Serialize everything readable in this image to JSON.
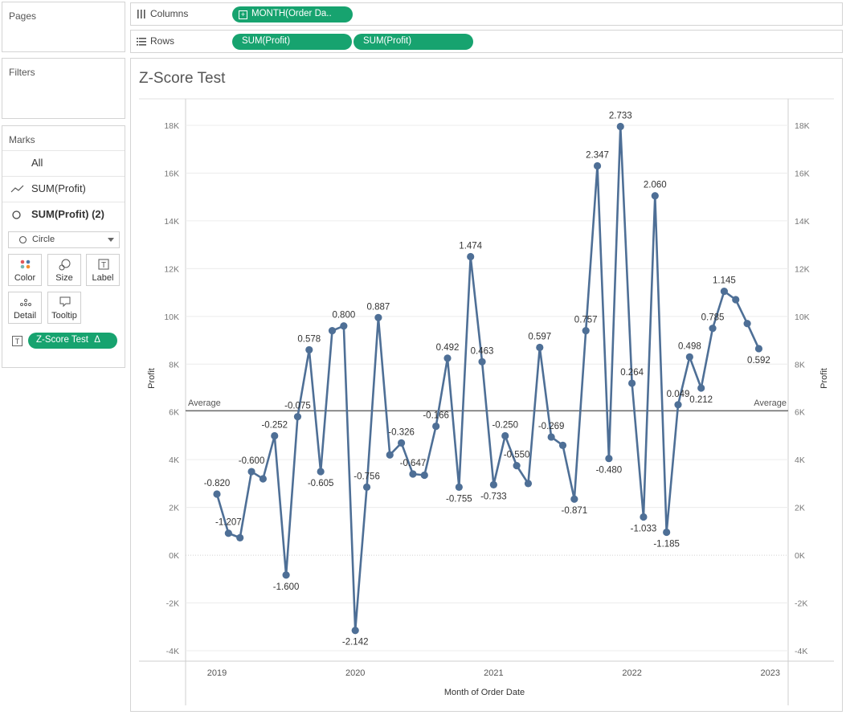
{
  "panels": {
    "pages_label": "Pages",
    "filters_label": "Filters",
    "marks_label": "Marks"
  },
  "marks": {
    "all_label": "All",
    "layer1_label": "SUM(Profit)",
    "layer2_label": "SUM(Profit) (2)",
    "mark_type": "Circle",
    "buttons": [
      {
        "label": "Color",
        "icon": "color-dots-icon"
      },
      {
        "label": "Size",
        "icon": "size-icon"
      },
      {
        "label": "Label",
        "icon": "label-icon"
      },
      {
        "label": "Detail",
        "icon": "detail-icon"
      },
      {
        "label": "Tooltip",
        "icon": "tooltip-icon"
      }
    ],
    "label_field": "Z-Score Test",
    "label_field_badge": "Δ"
  },
  "shelves": {
    "columns_label": "Columns",
    "columns_pill": "MONTH(Order Da..",
    "rows_label": "Rows",
    "rows_pills": [
      "SUM(Profit)",
      "SUM(Profit)"
    ]
  },
  "colors": {
    "pill": "#17a36f",
    "line": "#4e6f96",
    "grid": "#ececec",
    "avg_line": "#555555"
  },
  "chart_data": {
    "type": "line",
    "title": "Z-Score Test",
    "xlabel": "Month of Order Date",
    "ylabel": "Profit",
    "ylim": [
      -4000,
      19000
    ],
    "y_ticks": [
      -4000,
      -2000,
      0,
      2000,
      4000,
      6000,
      8000,
      10000,
      12000,
      14000,
      16000,
      18000
    ],
    "y_tick_labels": [
      "-4K",
      "-2K",
      "0K",
      "2K",
      "4K",
      "6K",
      "8K",
      "10K",
      "12K",
      "14K",
      "16K",
      "18K"
    ],
    "x_tick_labels": [
      "2019",
      "2020",
      "2021",
      "2022",
      "2023"
    ],
    "average_label": "Average",
    "average_value": 6050,
    "grid": true,
    "series": [
      {
        "name": "SUM(Profit)",
        "x": [
          "2019-01",
          "2019-02",
          "2019-03",
          "2019-04",
          "2019-05",
          "2019-06",
          "2019-07",
          "2019-08",
          "2019-09",
          "2019-10",
          "2019-11",
          "2019-12",
          "2020-01",
          "2020-02",
          "2020-03",
          "2020-04",
          "2020-05",
          "2020-06",
          "2020-07",
          "2020-08",
          "2020-09",
          "2020-10",
          "2020-11",
          "2020-12",
          "2021-01",
          "2021-02",
          "2021-03",
          "2021-04",
          "2021-05",
          "2021-06",
          "2021-07",
          "2021-08",
          "2021-09",
          "2021-10",
          "2021-11",
          "2021-12",
          "2022-01",
          "2022-02",
          "2022-03",
          "2022-04",
          "2022-05",
          "2022-06",
          "2022-07",
          "2022-08",
          "2022-09",
          "2022-10",
          "2022-11",
          "2022-12"
        ],
        "values": [
          2560,
          920,
          730,
          3500,
          3200,
          5000,
          -830,
          5800,
          8600,
          3500,
          9400,
          9600,
          -3150,
          2850,
          9950,
          4200,
          4700,
          3400,
          3350,
          5400,
          8250,
          2850,
          12500,
          8100,
          2950,
          5000,
          3750,
          3000,
          8700,
          4950,
          4600,
          2350,
          9400,
          16300,
          4050,
          17950,
          7200,
          1600,
          15050,
          960,
          6300,
          8300,
          7000,
          9500,
          11050,
          10700,
          9700,
          8650
        ],
        "labels": [
          "-0.820",
          "-1.207",
          "",
          "-0.600",
          "",
          "-0.252",
          "-1.600",
          "-0.075",
          "0.578",
          "-0.605",
          "",
          "0.800",
          "-2.142",
          "-0.756",
          "0.887",
          "",
          "-0.326",
          "-0.647",
          "",
          "-0.166",
          "0.492",
          "-0.755",
          "1.474",
          "0.463",
          "-0.733",
          "-0.250",
          "-0.550",
          "",
          "0.597",
          "-0.269",
          "",
          "-0.871",
          "0.757",
          "2.347",
          "-0.480",
          "2.733",
          "0.264",
          "-1.033",
          "2.060",
          "-1.185",
          "0.049",
          "0.498",
          "0.212",
          "0.785",
          "1.145",
          "",
          "",
          "0.592"
        ]
      }
    ]
  }
}
